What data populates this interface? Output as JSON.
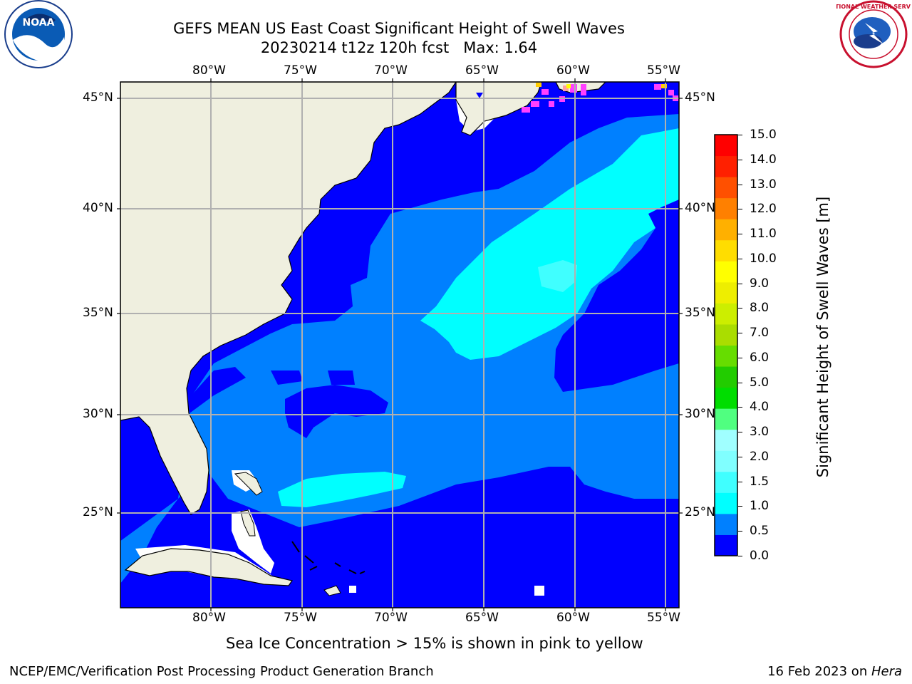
{
  "title": {
    "line1": "GEFS MEAN US East Coast Significant Height of Swell Waves",
    "line2": "20230214 t12z 120h fcst   Max: 1.64"
  },
  "map": {
    "lon_range": [
      -85,
      -54
    ],
    "lat_range": [
      20,
      46
    ],
    "lon_ticks": [
      "80°W",
      "75°W",
      "70°W",
      "65°W",
      "60°W",
      "55°W"
    ],
    "lat_ticks": [
      "45°N",
      "40°N",
      "35°N",
      "30°N",
      "25°N"
    ],
    "grid": true
  },
  "colorbar": {
    "label": "Significant Height of Swell Waves [m]",
    "ticks": [
      "15.0",
      "14.0",
      "13.0",
      "12.0",
      "11.0",
      "10.0",
      "9.0",
      "8.0",
      "7.0",
      "6.0",
      "5.0",
      "4.0",
      "3.0",
      "2.0",
      "1.5",
      "1.0",
      "0.5",
      "0.0"
    ],
    "colors": [
      "#0000ff",
      "#0080ff",
      "#00ffff",
      "#40ffff",
      "#80ffff",
      "#a0ffff",
      "#50ff80",
      "#00dd00",
      "#22cc00",
      "#66dd00",
      "#aadd00",
      "#ccee00",
      "#eeee00",
      "#ffff00",
      "#ffdd00",
      "#ffb000",
      "#ff8000",
      "#ff5000",
      "#ff2000",
      "#ff0000"
    ]
  },
  "colors": {
    "land": "#efefdf",
    "level_0": "#0000ff",
    "level_05": "#0080ff",
    "level_1": "#00ffff",
    "level_15": "#40ffff",
    "ice": "#ff40ff",
    "grid": "#b0b0b0"
  },
  "caption": "Sea Ice Concentration > 15% is shown in pink to yellow",
  "footer": {
    "left": "NCEP/EMC/Verification Post Processing Product Generation Branch",
    "date": "16 Feb 2023 on ",
    "machine": "Hera"
  },
  "logos": {
    "noaa": "NOAA",
    "nws": "NATIONAL WEATHER SERVICE"
  }
}
